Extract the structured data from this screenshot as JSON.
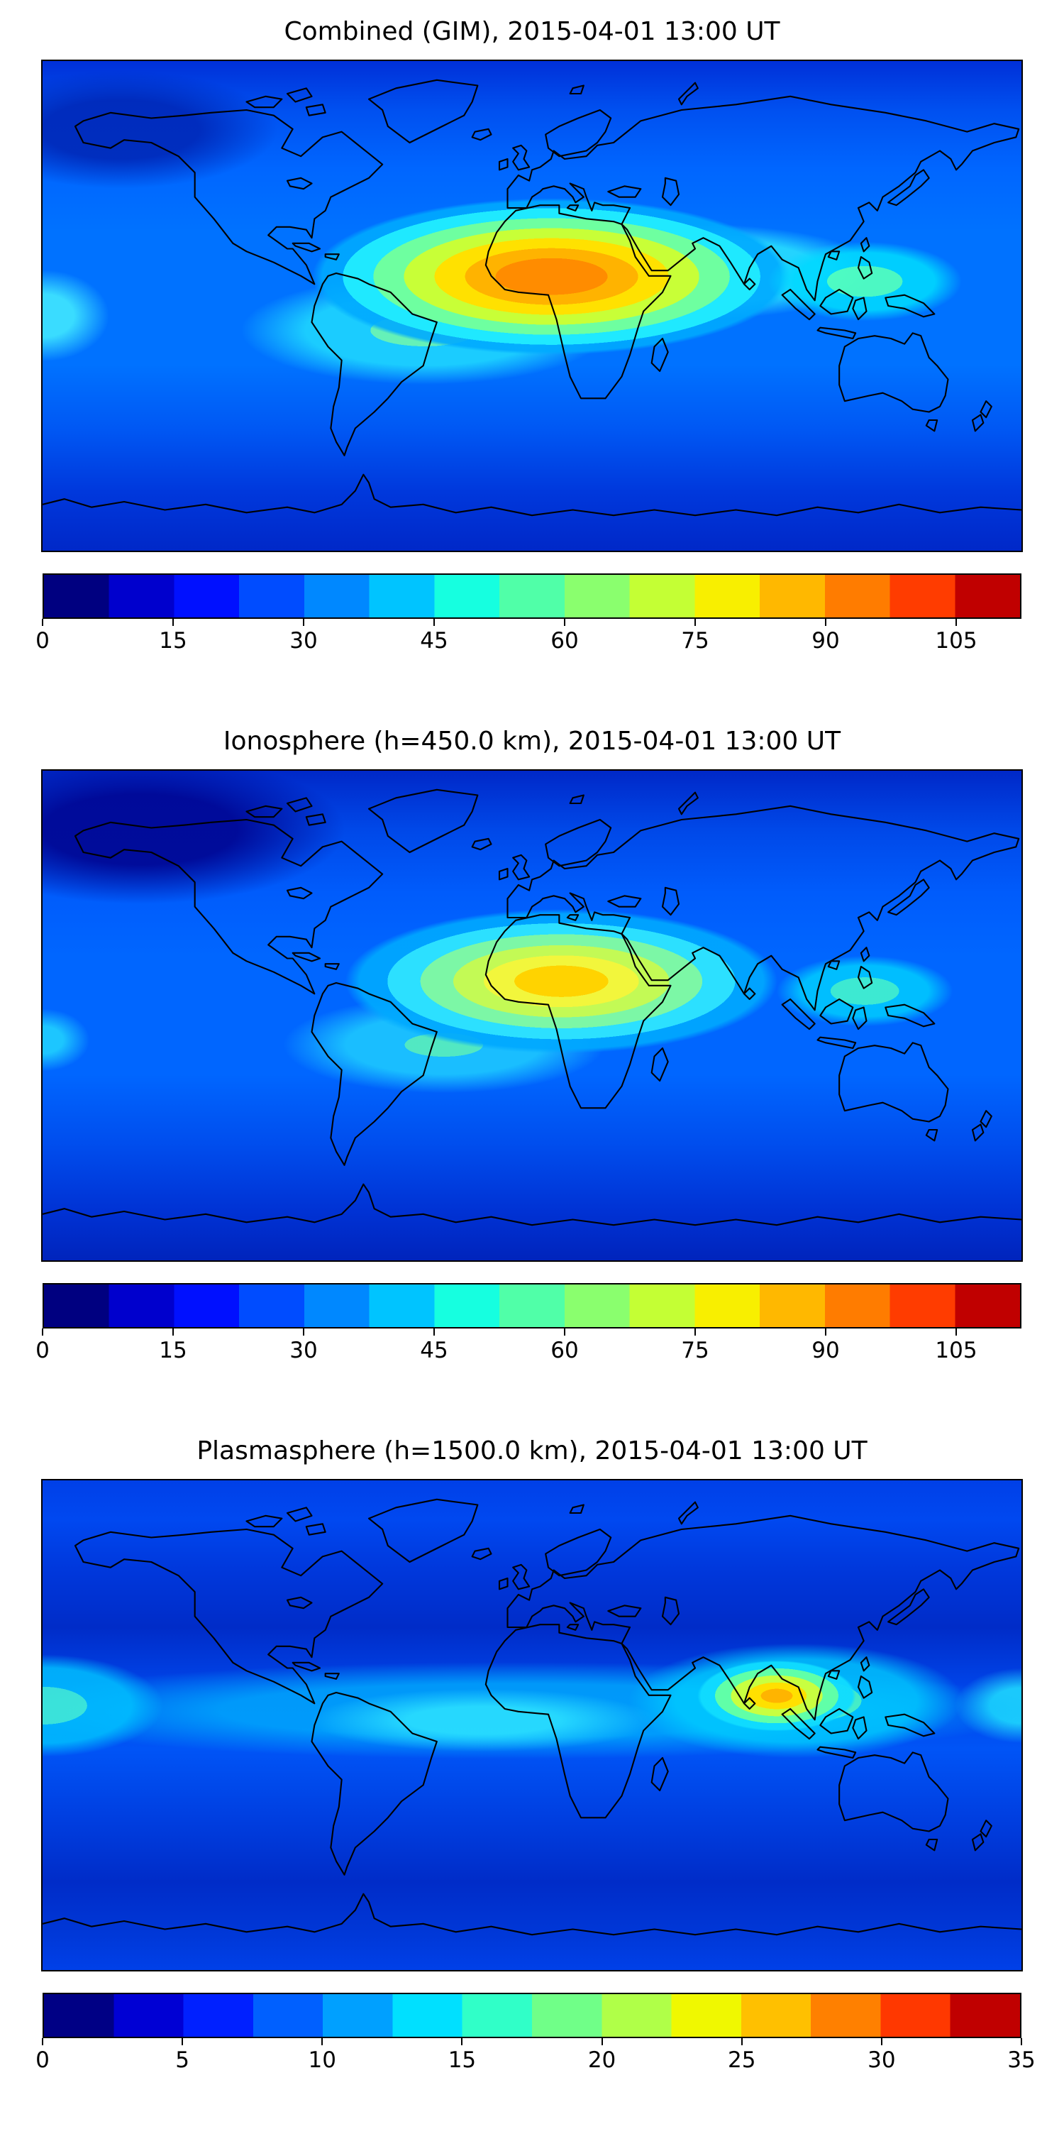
{
  "figure": {
    "panels": [
      {
        "title": "Combined (GIM), 2015-04-01 13:00 UT",
        "colorbar": {
          "vmin": 0,
          "vmax": 112.5,
          "ticks": [
            0,
            15,
            30,
            45,
            60,
            75,
            90,
            105
          ],
          "colors": [
            "#000080",
            "#0000cd",
            "#0010ff",
            "#004cff",
            "#0088ff",
            "#00c4ff",
            "#16ffe0",
            "#50ffa8",
            "#8aff6e",
            "#c4ff34",
            "#f8ef00",
            "#ffb800",
            "#ff7c00",
            "#ff3c00",
            "#c00000"
          ]
        }
      },
      {
        "title": "Ionosphere  (h=450.0 km), 2015-04-01 13:00 UT",
        "colorbar": {
          "vmin": 0,
          "vmax": 112.5,
          "ticks": [
            0,
            15,
            30,
            45,
            60,
            75,
            90,
            105
          ],
          "colors": [
            "#000080",
            "#0000cd",
            "#0010ff",
            "#004cff",
            "#0088ff",
            "#00c4ff",
            "#16ffe0",
            "#50ffa8",
            "#8aff6e",
            "#c4ff34",
            "#f8ef00",
            "#ffb800",
            "#ff7c00",
            "#ff3c00",
            "#c00000"
          ]
        }
      },
      {
        "title": "Plasmasphere (h=1500.0 km), 2015-04-01 13:00 UT",
        "colorbar": {
          "vmin": 0,
          "vmax": 35,
          "ticks": [
            0,
            5,
            10,
            15,
            20,
            25,
            30,
            35
          ],
          "colors": [
            "#000085",
            "#0000d4",
            "#0020ff",
            "#0060ff",
            "#00a0ff",
            "#00e0ff",
            "#30ffc8",
            "#70ff88",
            "#b0ff48",
            "#f0f800",
            "#ffc000",
            "#ff8000",
            "#ff3800",
            "#c00000"
          ]
        }
      }
    ]
  },
  "chart_data": [
    {
      "type": "heatmap",
      "title": "Combined (GIM), 2015-04-01 13:00 UT",
      "projection": "equirectangular world map with coastlines",
      "x_range": [
        -180,
        180
      ],
      "y_range": [
        -90,
        90
      ],
      "colormap": "jet",
      "contour_step": 7.5,
      "value_range": [
        0,
        112.5
      ],
      "colorbar_ticks": [
        0,
        15,
        30,
        45,
        60,
        75,
        90,
        105
      ],
      "legend_position": "horizontal colorbar below map",
      "features": [
        {
          "feature": "global maximum (orange core)",
          "lon": 10,
          "lat": 14,
          "approx_value": 85
        },
        {
          "feature": "warm band extending east over Arabia/India",
          "lon": 60,
          "lat": 15,
          "approx_value": 55
        },
        {
          "feature": "secondary cyan-green enhancement over Southeast Asia",
          "lon": 112,
          "lat": 8,
          "approx_value": 45
        },
        {
          "feature": "cyan-green extension toward South America/Atlantic",
          "lon": -40,
          "lat": -10,
          "approx_value": 40
        },
        {
          "feature": "cyan patch at western map edge, equatorial Pacific",
          "lon": -178,
          "lat": -5,
          "approx_value": 35
        },
        {
          "feature": "high-latitude northern minimum",
          "lon": -150,
          "lat": 65,
          "approx_value": 12
        },
        {
          "feature": "southern high-latitude minimum",
          "lon": 0,
          "lat": -75,
          "approx_value": 12
        }
      ]
    },
    {
      "type": "heatmap",
      "title": "Ionosphere  (h=450.0 km), 2015-04-01 13:00 UT",
      "projection": "equirectangular world map with coastlines",
      "x_range": [
        -180,
        180
      ],
      "y_range": [
        -90,
        90
      ],
      "colormap": "jet",
      "contour_step": 7.5,
      "value_range": [
        0,
        112.5
      ],
      "colorbar_ticks": [
        0,
        15,
        30,
        45,
        60,
        75,
        90,
        105
      ],
      "legend_position": "horizontal colorbar below map",
      "features": [
        {
          "feature": "global maximum (yellow core) over central/northern Africa",
          "lon": 15,
          "lat": 10,
          "approx_value": 68
        },
        {
          "feature": "green-cyan extension toward South Atlantic",
          "lon": -30,
          "lat": -12,
          "approx_value": 38
        },
        {
          "feature": "secondary cyan enhancement over Southeast Asia",
          "lon": 112,
          "lat": 8,
          "approx_value": 40
        },
        {
          "feature": "dark navy minimum over northwest North America / Arctic",
          "lon": -140,
          "lat": 70,
          "approx_value": 5
        },
        {
          "feature": "southern high-latitude minimum",
          "lon": 0,
          "lat": -75,
          "approx_value": 10
        }
      ]
    },
    {
      "type": "heatmap",
      "title": "Plasmasphere (h=1500.0 km), 2015-04-01 13:00 UT",
      "projection": "equirectangular world map with coastlines",
      "x_range": [
        -180,
        180
      ],
      "y_range": [
        -90,
        90
      ],
      "colormap": "jet",
      "contour_step": 2.5,
      "value_range": [
        0,
        35
      ],
      "colorbar_ticks": [
        0,
        5,
        10,
        15,
        20,
        25,
        30,
        35
      ],
      "legend_position": "horizontal colorbar below map",
      "features": [
        {
          "feature": "maximum (yellow-orange core) over India/Bay of Bengal",
          "lon": 90,
          "lat": 10,
          "approx_value": 27
        },
        {
          "feature": "green-cyan enhancement over Southeast Asia / Indonesia",
          "lon": 110,
          "lat": 5,
          "approx_value": 20
        },
        {
          "feature": "equatorial cyan band across Pacific and Africa",
          "lon": -20,
          "lat": 0,
          "approx_value": 15
        },
        {
          "feature": "cyan patch at western map edge",
          "lon": -175,
          "lat": 0,
          "approx_value": 17
        },
        {
          "feature": "northern mid-latitude dark blue band",
          "lon": 0,
          "lat": 55,
          "approx_value": 7
        },
        {
          "feature": "southern mid-latitude dark blue band",
          "lon": 0,
          "lat": -55,
          "approx_value": 7
        }
      ]
    }
  ]
}
